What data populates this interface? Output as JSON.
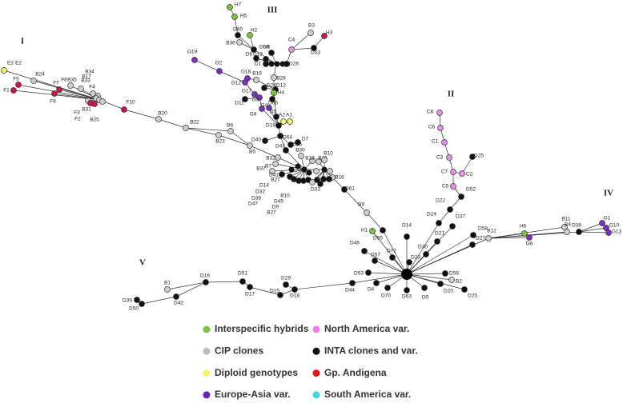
{
  "group_labels": [
    "I",
    "II",
    "III",
    "IV",
    "V"
  ],
  "nodes": [
    {
      "label": "E1-E2",
      "color": "#f5f56a"
    },
    {
      "label": "B24",
      "color": "#cfcfcf"
    },
    {
      "label": "F5",
      "color": "#c8174a"
    },
    {
      "label": "F1",
      "color": "#c8174a"
    },
    {
      "label": "F9",
      "color": "#c8174a"
    },
    {
      "label": "F7",
      "color": "#c8174a"
    },
    {
      "label": "F8",
      "color": "#cfcfcf"
    },
    {
      "label": "B35",
      "color": "#cfcfcf"
    },
    {
      "label": "B17",
      "color": "#cfcfcf"
    },
    {
      "label": "B34",
      "color": "#cfcfcf"
    },
    {
      "label": "B33",
      "color": "#cfcfcf"
    },
    {
      "label": "F4",
      "color": "#cfcfcf"
    },
    {
      "label": "B31",
      "color": "#cfcfcf"
    },
    {
      "label": "F3",
      "color": "#c8174a"
    },
    {
      "label": "F2",
      "color": "#c8174a"
    },
    {
      "label": "B25",
      "color": "#cfcfcf"
    },
    {
      "label": "F10",
      "color": "#c8174a"
    },
    {
      "label": "B20",
      "color": "#cfcfcf"
    },
    {
      "label": "B22",
      "color": "#cfcfcf"
    },
    {
      "label": "B23",
      "color": "#cfcfcf"
    },
    {
      "label": "B6",
      "color": "#cfcfcf"
    },
    {
      "label": "B5",
      "color": "#cfcfcf"
    },
    {
      "label": "H7",
      "color": "#7dc242"
    },
    {
      "label": "H5",
      "color": "#7dc242"
    },
    {
      "label": "D60",
      "color": "#111111"
    },
    {
      "label": "H2",
      "color": "#7dc242"
    },
    {
      "label": "B36",
      "color": "#cfcfcf"
    },
    {
      "label": "D59",
      "color": "#111111"
    },
    {
      "label": "D6",
      "color": "#111111"
    },
    {
      "label": "D13",
      "color": "#111111"
    },
    {
      "label": "D8",
      "color": "#111111"
    },
    {
      "label": "D1",
      "color": "#111111"
    },
    {
      "label": "D28",
      "color": "#111111"
    },
    {
      "label": "C4",
      "color": "#e592e6"
    },
    {
      "label": "B3",
      "color": "#cfcfcf"
    },
    {
      "label": "H3",
      "color": "#c8174a"
    },
    {
      "label": "D53",
      "color": "#111111"
    },
    {
      "label": "B28",
      "color": "#cfcfcf"
    },
    {
      "label": "G19",
      "color": "#7b2fbf"
    },
    {
      "label": "G2",
      "color": "#7b2fbf"
    },
    {
      "label": "G18",
      "color": "#7b2fbf"
    },
    {
      "label": "B19",
      "color": "#cfcfcf"
    },
    {
      "label": "G12",
      "color": "#7b2fbf"
    },
    {
      "label": "D24",
      "color": "#111111"
    },
    {
      "label": "D12",
      "color": "#111111"
    },
    {
      "label": "G17",
      "color": "#7b2fbf"
    },
    {
      "label": "G5",
      "color": "#7b2fbf"
    },
    {
      "label": "D11",
      "color": "#111111"
    },
    {
      "label": "H4",
      "color": "#7dc242"
    },
    {
      "label": "G8",
      "color": "#7b2fbf"
    },
    {
      "label": "G4",
      "color": "#7b2fbf"
    },
    {
      "label": "D65",
      "color": "#111111"
    },
    {
      "label": "D5",
      "color": "#111111"
    },
    {
      "label": "A2",
      "color": "#f5f56a"
    },
    {
      "label": "A1",
      "color": "#f5f56a"
    },
    {
      "label": "D19",
      "color": "#111111"
    },
    {
      "label": "D64",
      "color": "#111111"
    },
    {
      "label": "D40",
      "color": "#111111"
    },
    {
      "label": "D35",
      "color": "#111111"
    },
    {
      "label": "D7",
      "color": "#111111"
    },
    {
      "label": "D43",
      "color": "#111111"
    },
    {
      "label": "B30",
      "color": "#cfcfcf"
    },
    {
      "label": "B32",
      "color": "#cfcfcf"
    },
    {
      "label": "B7",
      "color": "#cfcfcf"
    },
    {
      "label": "B37",
      "color": "#cfcfcf"
    },
    {
      "label": "D41",
      "color": "#111111"
    },
    {
      "label": "B18",
      "color": "#cfcfcf"
    },
    {
      "label": "B15",
      "color": "#cfcfcf"
    },
    {
      "label": "B10",
      "color": "#cfcfcf"
    },
    {
      "label": "B16",
      "color": "#cfcfcf"
    },
    {
      "label": "D33",
      "color": "#111111"
    },
    {
      "label": "D61",
      "color": "#111111"
    },
    {
      "label": "B27",
      "color": "#111111"
    },
    {
      "label": "D14",
      "color": "#111111"
    },
    {
      "label": "D32",
      "color": "#111111"
    },
    {
      "label": "D38",
      "color": "#111111"
    },
    {
      "label": "D47",
      "color": "#111111"
    },
    {
      "label": "B10",
      "color": "#cfcfcf"
    },
    {
      "label": "D45",
      "color": "#111111"
    },
    {
      "label": "D9",
      "color": "#111111"
    },
    {
      "label": "B27",
      "color": "#111111"
    },
    {
      "label": "B9",
      "color": "#cfcfcf"
    },
    {
      "label": "D55",
      "color": "#111111"
    },
    {
      "label": "H1",
      "color": "#7dc242"
    },
    {
      "label": "D46",
      "color": "#111111"
    },
    {
      "label": "D57",
      "color": "#111111"
    },
    {
      "label": "D72",
      "color": "#111111"
    },
    {
      "label": "D14",
      "color": "#111111"
    },
    {
      "label": "D23",
      "color": "#111111"
    },
    {
      "label": "D53",
      "color": "#111111"
    },
    {
      "label": "D44",
      "color": "#111111"
    },
    {
      "label": "D4",
      "color": "#111111"
    },
    {
      "label": "D70",
      "color": "#111111"
    },
    {
      "label": "D63",
      "color": "#111111"
    },
    {
      "label": "D0",
      "color": "#111111"
    },
    {
      "label": "D20",
      "color": "#111111"
    },
    {
      "label": "D56",
      "color": "#111111"
    },
    {
      "label": "B2",
      "color": "#cfcfcf"
    },
    {
      "label": "D25",
      "color": "#111111"
    },
    {
      "label": "D27",
      "color": "#111111"
    },
    {
      "label": "D58",
      "color": "#111111"
    },
    {
      "label": "D37",
      "color": "#111111"
    },
    {
      "label": "D21",
      "color": "#111111"
    },
    {
      "label": "D30",
      "color": "#111111"
    },
    {
      "label": "D24",
      "color": "#111111"
    },
    {
      "label": "D22",
      "color": "#111111"
    },
    {
      "label": "D52",
      "color": "#111111"
    },
    {
      "label": "C5",
      "color": "#e592e6"
    },
    {
      "label": "C7",
      "color": "#e592e6"
    },
    {
      "label": "C2",
      "color": "#e592e6"
    },
    {
      "label": "D25",
      "color": "#111111"
    },
    {
      "label": "C3",
      "color": "#e592e6"
    },
    {
      "label": "C1",
      "color": "#e592e6"
    },
    {
      "label": "C6",
      "color": "#e592e6"
    },
    {
      "label": "C8",
      "color": "#e592e6"
    },
    {
      "label": "B12",
      "color": "#cfcfcf"
    },
    {
      "label": "H6",
      "color": "#7dc242"
    },
    {
      "label": "G6",
      "color": "#7b2fbf"
    },
    {
      "label": "B11",
      "color": "#cfcfcf"
    },
    {
      "label": "B4",
      "color": "#cfcfcf"
    },
    {
      "label": "D36",
      "color": "#111111"
    },
    {
      "label": "G1",
      "color": "#7b2fbf"
    },
    {
      "label": "G10",
      "color": "#7b2fbf"
    },
    {
      "label": "G13",
      "color": "#7b2fbf"
    },
    {
      "label": "D18",
      "color": "#111111"
    },
    {
      "label": "D29",
      "color": "#111111"
    },
    {
      "label": "D15",
      "color": "#111111"
    },
    {
      "label": "D17",
      "color": "#111111"
    },
    {
      "label": "D51",
      "color": "#111111"
    },
    {
      "label": "D16",
      "color": "#111111"
    },
    {
      "label": "B1",
      "color": "#cfcfcf"
    },
    {
      "label": "D42",
      "color": "#111111"
    },
    {
      "label": "D39",
      "color": "#111111"
    },
    {
      "label": "D50",
      "color": "#111111"
    }
  ],
  "legend": [
    {
      "label": "Interspecific hybrids",
      "color": "#7dc242"
    },
    {
      "label": "CIP clones",
      "color": "#bdbdbd"
    },
    {
      "label": "Diploid genotypes",
      "color": "#f5f56a"
    },
    {
      "label": "Europe-Asia var.",
      "color": "#6a1fbf"
    },
    {
      "label": "North America var.",
      "color": "#ef7de8"
    },
    {
      "label": "INTA clones and var.",
      "color": "#111111"
    },
    {
      "label": "Gp. Andigena",
      "color": "#e01818"
    },
    {
      "label": "South America var.",
      "color": "#40d6e0"
    }
  ]
}
